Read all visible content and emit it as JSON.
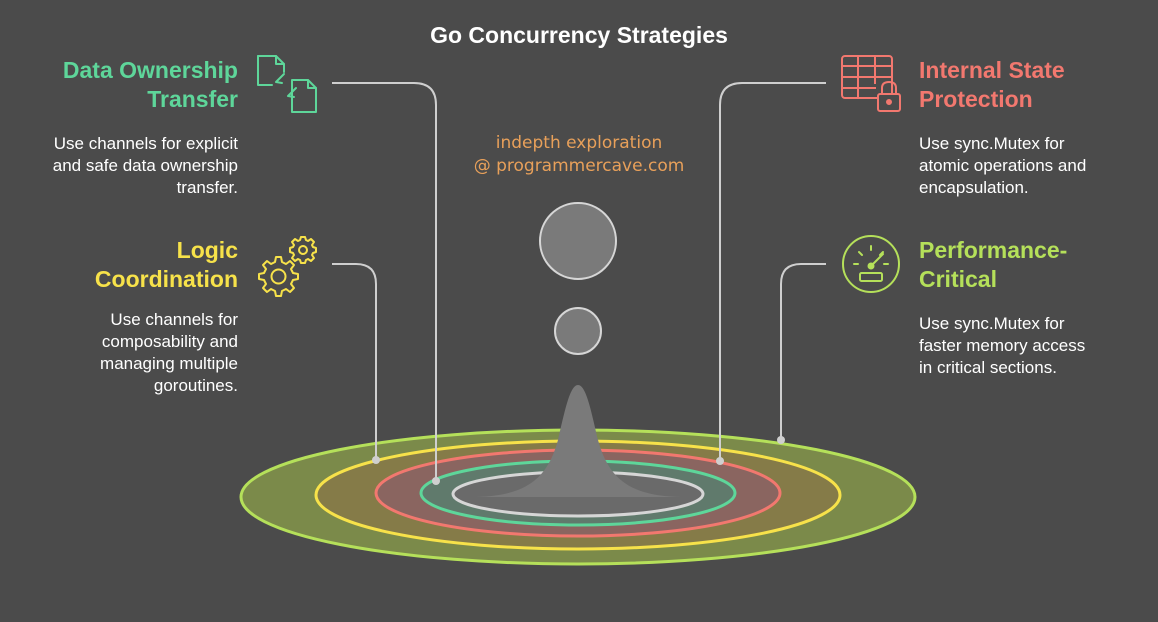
{
  "title": "Go Concurrency Strategies",
  "watermark": {
    "line1": "indepth exploration",
    "line2": "@ programmercave.com"
  },
  "colors": {
    "background": "#4b4b4b",
    "green": "#5ed69a",
    "yellow": "#f7e24a",
    "red": "#f2786f",
    "lime": "#b5e05a",
    "gray_shape": "#7a7a7a",
    "connector": "#cfcfcf",
    "watermark": "#e8a05a"
  },
  "items": [
    {
      "id": "data-ownership",
      "heading_line1": "Data Ownership",
      "heading_line2": "Transfer",
      "description_lines": [
        "Use channels for explicit",
        "and safe data ownership",
        "transfer."
      ],
      "icon": "file-transfer-icon",
      "color": "#5ed69a"
    },
    {
      "id": "logic-coordination",
      "heading_line1": "Logic",
      "heading_line2": "Coordination",
      "description_lines": [
        "Use channels for",
        "composability and",
        "managing multiple",
        "goroutines."
      ],
      "icon": "gears-icon",
      "color": "#f7e24a"
    },
    {
      "id": "internal-state",
      "heading_line1": "Internal State",
      "heading_line2": "Protection",
      "description_lines": [
        "Use sync.Mutex for",
        "atomic operations and",
        "encapsulation."
      ],
      "icon": "table-lock-icon",
      "color": "#f2786f"
    },
    {
      "id": "performance-critical",
      "heading_line1": "Performance-",
      "heading_line2": "Critical",
      "description_lines": [
        "Use sync.Mutex for",
        "faster memory access",
        "in critical sections."
      ],
      "icon": "speedometer-icon",
      "color": "#b5e05a"
    }
  ]
}
